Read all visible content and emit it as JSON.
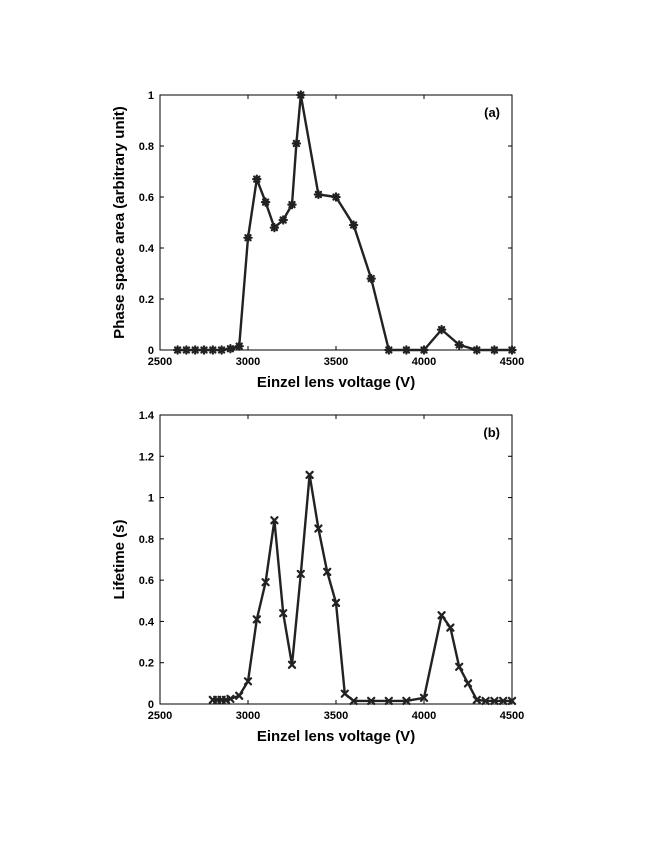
{
  "chart_data": [
    {
      "type": "line",
      "panel_label": "(a)",
      "xlabel": "Einzel lens voltage (V)",
      "ylabel": "Phase space area (arbitrary unit)",
      "xlim": [
        2500,
        4500
      ],
      "ylim": [
        0,
        1
      ],
      "x_ticks": [
        2500,
        3000,
        3500,
        4000,
        4500
      ],
      "y_ticks": [
        0,
        0.2,
        0.4,
        0.6,
        0.8,
        1
      ],
      "x_tick_labels": [
        "2500",
        "3000",
        "3500",
        "4000",
        "4500"
      ],
      "y_tick_labels": [
        "0",
        "0.2",
        "0.4",
        "0.6",
        "0.8",
        "1"
      ],
      "grid": false,
      "marker": "asterisk",
      "series": [
        {
          "x": [
            2600,
            2650,
            2700,
            2750,
            2800,
            2850,
            2900,
            2950,
            3000,
            3050,
            3100,
            3150,
            3200,
            3250,
            3275,
            3300,
            3400,
            3500,
            3600,
            3700,
            3800,
            3900,
            4000,
            4100,
            4200,
            4300,
            4400,
            4500
          ],
          "y": [
            0,
            0,
            0,
            0,
            0,
            0,
            0.005,
            0.015,
            0.44,
            0.67,
            0.58,
            0.48,
            0.51,
            0.57,
            0.81,
            1.0,
            0.61,
            0.6,
            0.49,
            0.28,
            0.0,
            0.0,
            0.0,
            0.08,
            0.02,
            0.0,
            0.0,
            0.0
          ]
        }
      ]
    },
    {
      "type": "line",
      "panel_label": "(b)",
      "xlabel": "Einzel lens voltage (V)",
      "ylabel": "Lifetime (s)",
      "xlim": [
        2500,
        4500
      ],
      "ylim": [
        0,
        1.4
      ],
      "x_ticks": [
        2500,
        3000,
        3500,
        4000,
        4500
      ],
      "y_ticks": [
        0,
        0.2,
        0.4,
        0.6,
        0.8,
        1,
        1.2,
        1.4
      ],
      "x_tick_labels": [
        "2500",
        "3000",
        "3500",
        "4000",
        "4500"
      ],
      "y_tick_labels": [
        "0",
        "0.2",
        "0.4",
        "0.6",
        "0.8",
        "1",
        "1.2",
        "1.4"
      ],
      "grid": false,
      "marker": "x",
      "series": [
        {
          "x": [
            2800,
            2825,
            2850,
            2875,
            2900,
            2950,
            3000,
            3050,
            3100,
            3150,
            3200,
            3250,
            3300,
            3350,
            3400,
            3450,
            3500,
            3550,
            3600,
            3700,
            3800,
            3900,
            4000,
            4100,
            4150,
            4200,
            4250,
            4300,
            4350,
            4400,
            4450,
            4500
          ],
          "y": [
            0.02,
            0.02,
            0.02,
            0.02,
            0.025,
            0.04,
            0.11,
            0.41,
            0.59,
            0.89,
            0.44,
            0.19,
            0.63,
            1.11,
            0.85,
            0.64,
            0.49,
            0.05,
            0.015,
            0.015,
            0.015,
            0.015,
            0.03,
            0.43,
            0.37,
            0.18,
            0.1,
            0.02,
            0.015,
            0.015,
            0.015,
            0.015
          ]
        }
      ]
    }
  ]
}
